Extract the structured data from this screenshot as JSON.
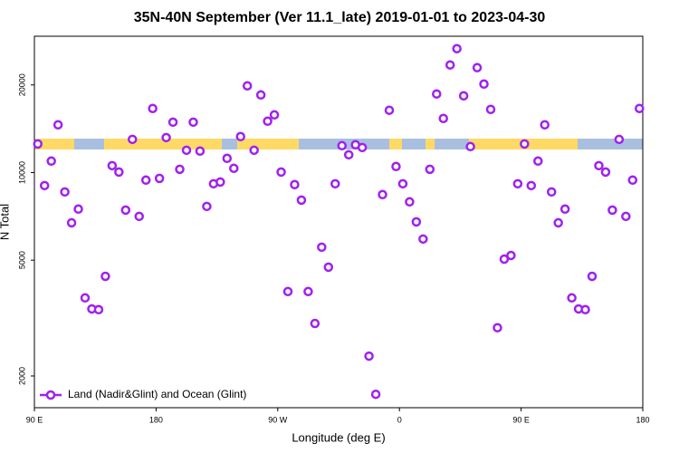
{
  "chart_data": {
    "type": "scatter",
    "title": "35N-40N September (Ver 11.1_late)   2019-01-01 to 2023-04-30",
    "xlabel": "Longitude (deg E)",
    "ylabel": "N Total",
    "xlim": [
      90,
      540
    ],
    "xticks": [
      {
        "value": 90,
        "label": "90 E"
      },
      180,
      {
        "value": 270,
        "label": "90 W"
      },
      {
        "value": 360,
        "label": "0"
      },
      {
        "value": 450,
        "label": "90 E"
      },
      {
        "value": 540,
        "label": "180"
      }
    ],
    "ylim": [
      1556,
      29400
    ],
    "log_y": true,
    "yticks": [
      2000,
      5000,
      10000,
      20000
    ],
    "legend": "bottom-left",
    "series": [
      {
        "name": "Land (Nadir&Glint) and Ocean (Glint)",
        "color": "#a020f0",
        "x": [
          92.5,
          97.5,
          102.5,
          107.5,
          112.5,
          117.5,
          122.5,
          127.5,
          132.5,
          137.5,
          142.5,
          147.5,
          152.5,
          157.5,
          162.5,
          167.5,
          172.5,
          177.5,
          182.5,
          187.5,
          192.5,
          197.5,
          202.5,
          207.5,
          212.5,
          217.5,
          222.5,
          227.5,
          232.5,
          237.5,
          242.5,
          247.5,
          252.5,
          257.5,
          262.5,
          267.5,
          272.5,
          277.5,
          282.5,
          287.5,
          292.5,
          297.5,
          302.5,
          307.5,
          312.5,
          317.5,
          322.5,
          327.5,
          332.5,
          337.5,
          342.5,
          347.5,
          352.5,
          357.5,
          362.5,
          367.5,
          372.5,
          377.5,
          382.5,
          387.5,
          392.5,
          397.5,
          402.5,
          407.5,
          412.5,
          417.5,
          422.5,
          427.5,
          432.5,
          437.5,
          442.5,
          447.5,
          452.5,
          457.5,
          462.5,
          467.5,
          472.5,
          477.5,
          482.5,
          487.5,
          492.5,
          497.5,
          502.5,
          507.5,
          512.5,
          517.5,
          522.5,
          527.5,
          532.5,
          537.5
        ],
        "values": [
          12540,
          9020,
          10950,
          14590,
          8580,
          6720,
          7490,
          3710,
          3400,
          3380,
          4400,
          10560,
          10040,
          7430,
          13000,
          7070,
          9420,
          16600,
          9550,
          13190,
          14900,
          10260,
          11930,
          14900,
          11850,
          7650,
          9150,
          9280,
          11190,
          10340,
          13290,
          19860,
          11930,
          18480,
          15010,
          15780,
          10040,
          3900,
          9090,
          8040,
          3900,
          3030,
          5540,
          4730,
          9150,
          12370,
          11510,
          12460,
          12190,
          2340,
          1730,
          8400,
          16370,
          10490,
          9150,
          7930,
          6770,
          5910,
          10260,
          18620,
          15340,
          23420,
          26650,
          18350,
          12280,
          22930,
          20140,
          16480,
          2930,
          5040,
          5190,
          9150,
          12540,
          9020,
          10950,
          14590,
          8580,
          6720,
          7490,
          3710,
          3400,
          3380,
          4400,
          10560,
          10040,
          7430,
          13000,
          7070,
          9420,
          16600
        ]
      }
    ]
  }
}
